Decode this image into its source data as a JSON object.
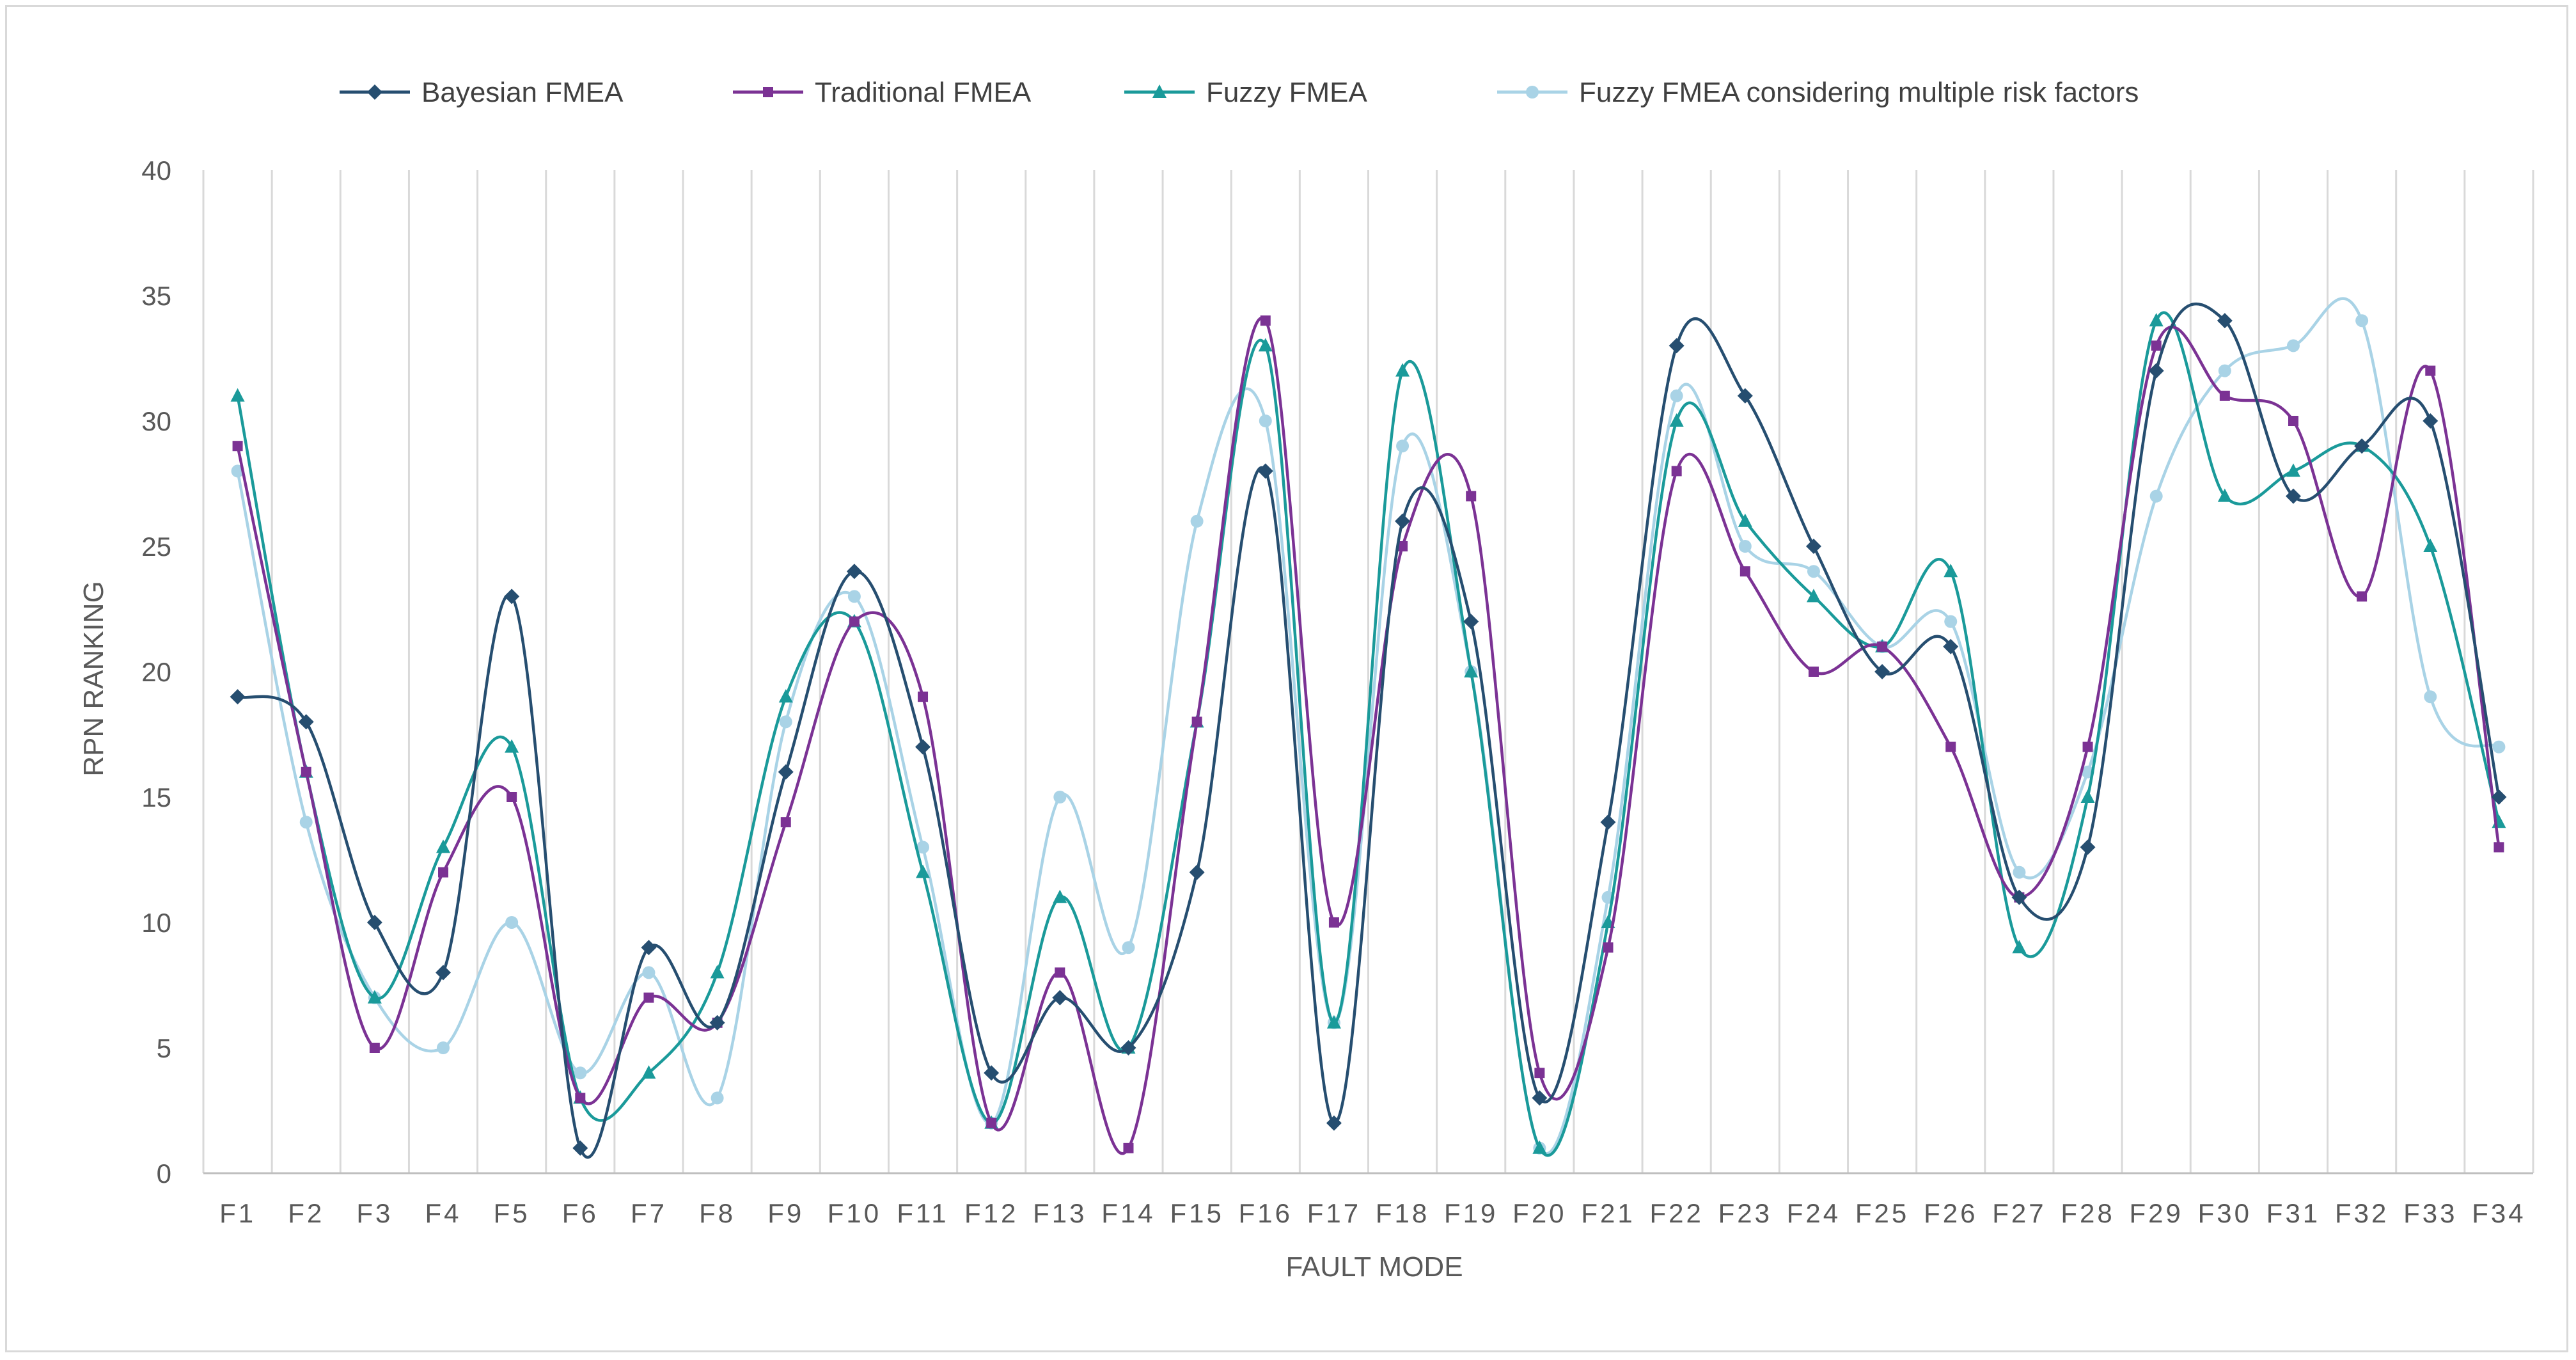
{
  "chart_data": {
    "type": "line",
    "title": "",
    "xlabel": "FAULT MODE",
    "ylabel": "RPN RANKING",
    "ylim": [
      0,
      40
    ],
    "yticks": [
      0,
      5,
      10,
      15,
      20,
      25,
      30,
      35,
      40
    ],
    "grid": "vertical",
    "legend_position": "top",
    "smooth": true,
    "categories": [
      "F1",
      "F2",
      "F3",
      "F4",
      "F5",
      "F6",
      "F7",
      "F8",
      "F9",
      "F10",
      "F11",
      "F12",
      "F13",
      "F14",
      "F15",
      "F16",
      "F17",
      "F18",
      "F19",
      "F20",
      "F21",
      "F22",
      "F23",
      "F24",
      "F25",
      "F26",
      "F27",
      "F28",
      "F29",
      "F30",
      "F31",
      "F32",
      "F33",
      "F34"
    ],
    "series": [
      {
        "name": "Bayesian FMEA",
        "color": "#264e70",
        "marker": "diamond",
        "values": [
          19,
          18,
          10,
          8,
          23,
          1,
          9,
          6,
          16,
          24,
          17,
          4,
          7,
          5,
          12,
          28,
          2,
          26,
          22,
          3,
          14,
          33,
          31,
          25,
          20,
          21,
          11,
          13,
          32,
          34,
          27,
          29,
          30,
          15
        ]
      },
      {
        "name": "Traditional FMEA",
        "color": "#7b3294",
        "marker": "square",
        "values": [
          29,
          16,
          5,
          12,
          15,
          3,
          7,
          6,
          14,
          22,
          19,
          2,
          8,
          1,
          18,
          34,
          10,
          25,
          27,
          4,
          9,
          28,
          24,
          20,
          21,
          17,
          11,
          17,
          33,
          31,
          30,
          23,
          32,
          13
        ]
      },
      {
        "name": "Fuzzy FMEA",
        "color": "#1a9a9a",
        "marker": "triangle",
        "values": [
          31,
          16,
          7,
          13,
          17,
          3,
          4,
          8,
          19,
          22,
          12,
          2,
          11,
          5,
          18,
          33,
          6,
          32,
          20,
          1,
          10,
          30,
          26,
          23,
          21,
          24,
          9,
          15,
          34,
          27,
          28,
          29,
          25,
          14
        ]
      },
      {
        "name": "Fuzzy FMEA considering multiple risk factors",
        "color": "#a9d3e6",
        "marker": "circle",
        "values": [
          28,
          14,
          7,
          5,
          10,
          4,
          8,
          3,
          18,
          23,
          13,
          2,
          15,
          9,
          26,
          30,
          6,
          29,
          20,
          1,
          11,
          31,
          25,
          24,
          21,
          22,
          12,
          16,
          27,
          32,
          33,
          34,
          19,
          17
        ]
      }
    ]
  }
}
